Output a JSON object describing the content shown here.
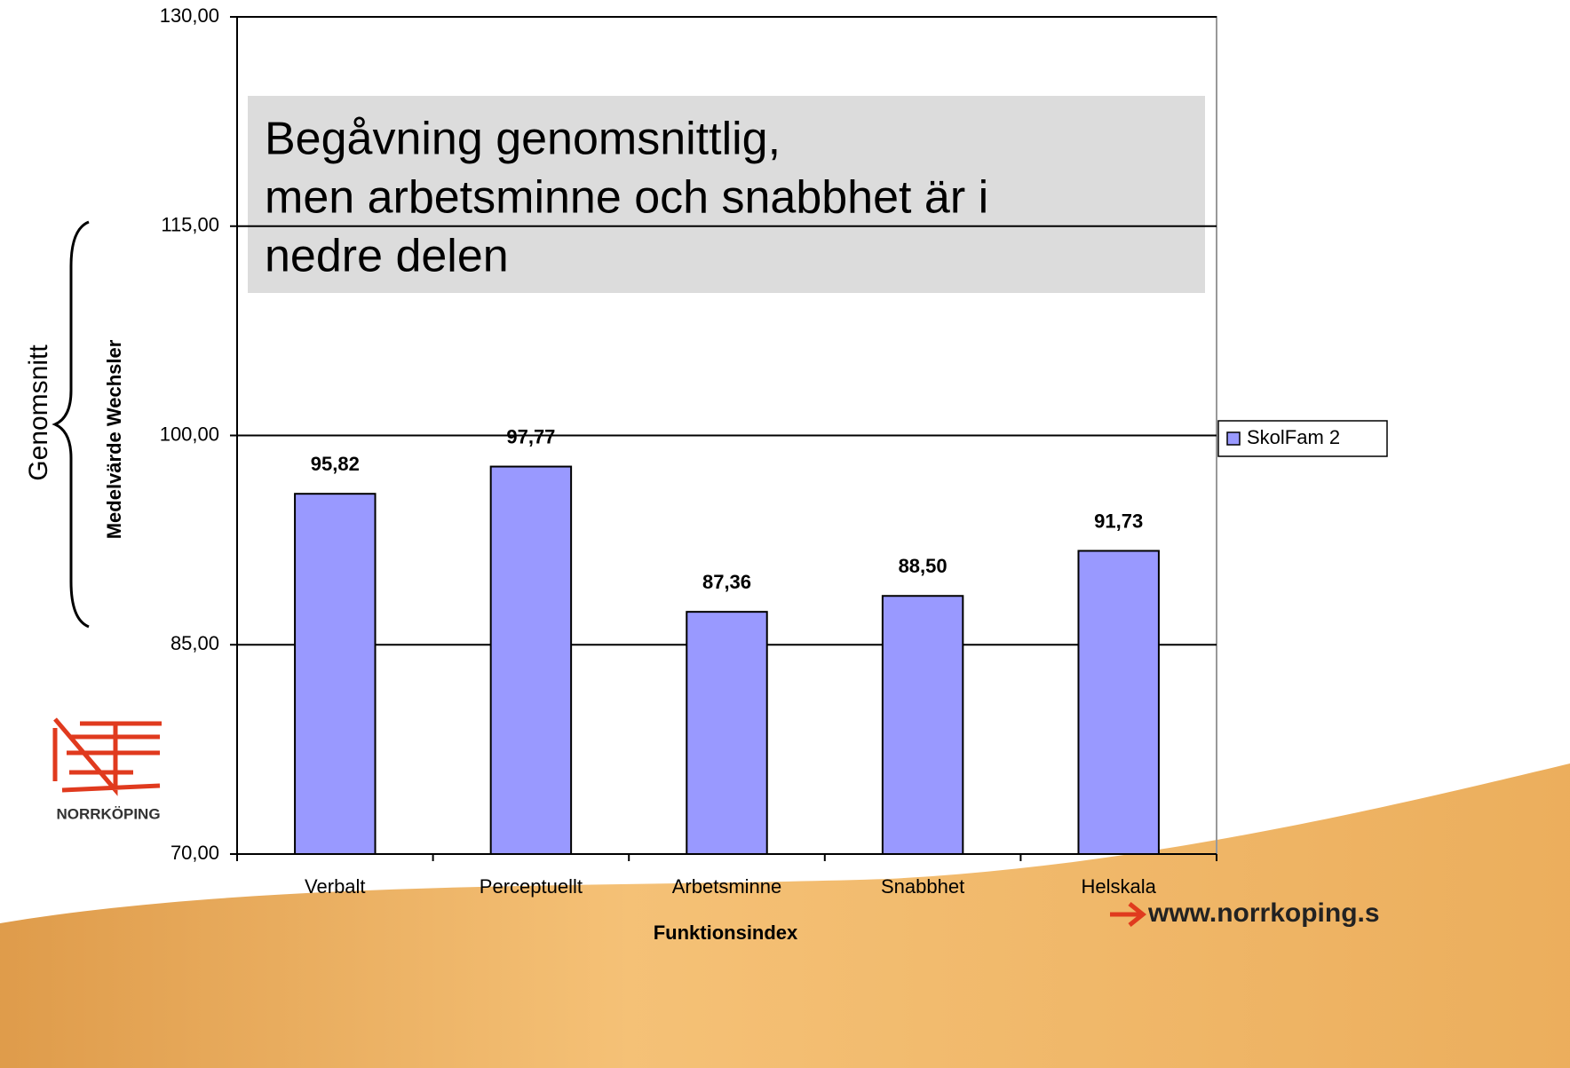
{
  "chart_data": {
    "type": "bar",
    "annotation": [
      "Begåvning genomsnittlig,",
      "men arbetsminne och snabbhet är i",
      "nedre delen"
    ],
    "side_label": "Genomsnitt",
    "y_label": "Medelvärde Wechsler",
    "x_label": "Funktionsindex",
    "categories": [
      "Verbalt",
      "Perceptuellt",
      "Arbetsminne",
      "Snabbhet",
      "Helskala"
    ],
    "series": [
      {
        "name": "SkolFam 2",
        "color": "#9999ff",
        "values": [
          95.82,
          97.77,
          87.36,
          88.5,
          91.73
        ],
        "value_labels": [
          "95,82",
          "97,77",
          "87,36",
          "88,50",
          "91,73"
        ]
      }
    ],
    "ylim": [
      70,
      130
    ],
    "yticks": [
      {
        "value": 70,
        "label": "70,00"
      },
      {
        "value": 85,
        "label": "85,00"
      },
      {
        "value": 100,
        "label": "100,00"
      },
      {
        "value": 115,
        "label": "115,00"
      },
      {
        "value": 130,
        "label": "130,00"
      }
    ],
    "grid": true,
    "legend": "right"
  },
  "logo": {
    "text": "NORRKÖPING"
  },
  "url": "www.norrkoping.s"
}
